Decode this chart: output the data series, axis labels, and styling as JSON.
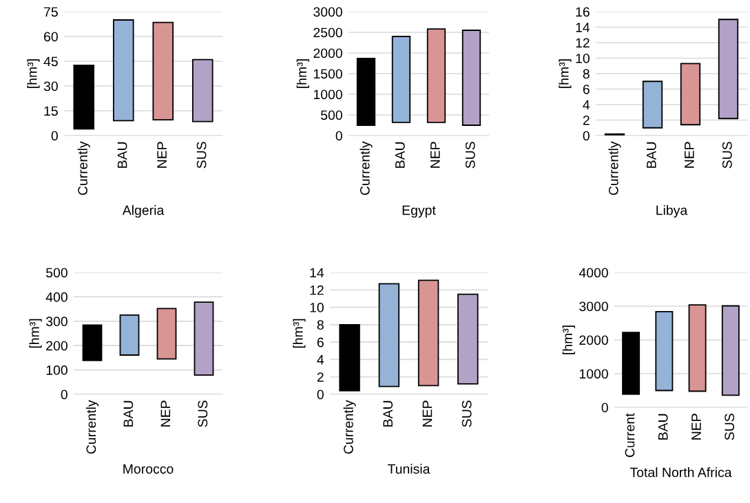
{
  "chart_data": [
    {
      "type": "bar",
      "xlabel": "Algeria",
      "ylabel": "[hm³]",
      "categories": [
        "Currently",
        "BAU",
        "NEP",
        "SUS"
      ],
      "base": [
        4,
        9,
        9.5,
        8.5
      ],
      "values": [
        38.5,
        61,
        59,
        37.5
      ],
      "colors": [
        "#000000",
        "#95b3d7",
        "#d99594",
        "#b3a2c7"
      ],
      "ylim": [
        0,
        75
      ],
      "yticks": [
        0,
        15,
        30,
        45,
        60,
        75
      ],
      "grid": "y"
    },
    {
      "type": "bar",
      "xlabel": "Egypt",
      "ylabel": "[hm³]",
      "categories": [
        "Currently",
        "BAU",
        "NEP",
        "SUS"
      ],
      "base": [
        250,
        320,
        320,
        250
      ],
      "values": [
        1620,
        2080,
        2260,
        2300
      ],
      "colors": [
        "#000000",
        "#95b3d7",
        "#d99594",
        "#b3a2c7"
      ],
      "ylim": [
        0,
        3000
      ],
      "yticks": [
        0,
        500,
        1000,
        1500,
        2000,
        2500,
        3000
      ],
      "grid": "y"
    },
    {
      "type": "bar",
      "xlabel": "Libya",
      "ylabel": "[hm³]",
      "categories": [
        "Currently",
        "BAU",
        "NEP",
        "SUS"
      ],
      "base": [
        0.1,
        1.0,
        1.4,
        2.2
      ],
      "values": [
        0.1,
        6.0,
        7.9,
        12.8
      ],
      "colors": [
        "#000000",
        "#95b3d7",
        "#d99594",
        "#b3a2c7"
      ],
      "ylim": [
        0,
        16
      ],
      "yticks": [
        0,
        2,
        4,
        6,
        8,
        10,
        12,
        14,
        16
      ],
      "grid": "y"
    },
    {
      "type": "bar",
      "xlabel": "Morocco",
      "ylabel": "[hm³]",
      "categories": [
        "Currently",
        "BAU",
        "NEP",
        "SUS"
      ],
      "base": [
        139,
        161,
        145,
        79
      ],
      "values": [
        145,
        164,
        207,
        299
      ],
      "colors": [
        "#000000",
        "#95b3d7",
        "#d99594",
        "#b3a2c7"
      ],
      "ylim": [
        0,
        500
      ],
      "yticks": [
        0,
        100,
        200,
        300,
        400,
        500
      ],
      "grid": "y"
    },
    {
      "type": "bar",
      "xlabel": "Tunisia",
      "ylabel": "[hm³]",
      "categories": [
        "Currently",
        "BAU",
        "NEP",
        "SUS"
      ],
      "base": [
        0.4,
        0.9,
        1.0,
        1.2
      ],
      "values": [
        7.6,
        11.8,
        12.1,
        10.3
      ],
      "colors": [
        "#000000",
        "#95b3d7",
        "#d99594",
        "#b3a2c7"
      ],
      "ylim": [
        0,
        14
      ],
      "yticks": [
        0,
        2,
        4,
        6,
        8,
        10,
        12,
        14
      ],
      "grid": "y"
    },
    {
      "type": "bar",
      "xlabel": "Total North Africa",
      "ylabel": "[hm³]",
      "categories": [
        "Current",
        "BAU",
        "NEP",
        "SUS"
      ],
      "base": [
        390,
        500,
        480,
        360
      ],
      "values": [
        1830,
        2340,
        2560,
        2650
      ],
      "colors": [
        "#000000",
        "#95b3d7",
        "#d99594",
        "#b3a2c7"
      ],
      "ylim": [
        0,
        4000
      ],
      "yticks": [
        0,
        1000,
        2000,
        3000,
        4000
      ],
      "grid": "y"
    }
  ]
}
